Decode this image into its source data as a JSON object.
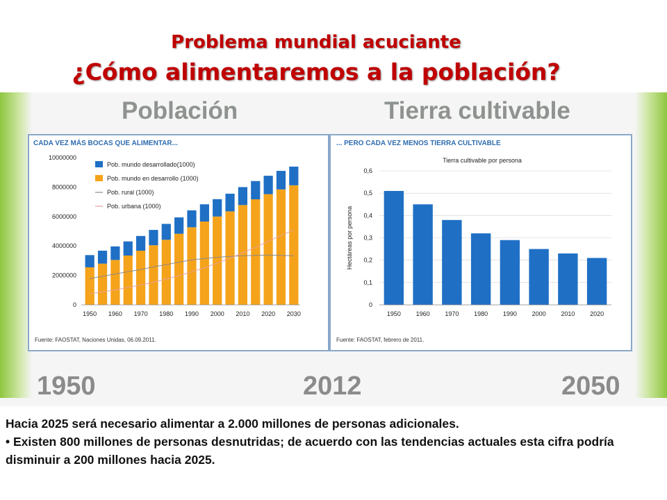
{
  "header": {
    "title": "Problema mundial acuciante",
    "subtitle": "¿Cómo alimentaremos a la población?"
  },
  "slide": {
    "heading_left": "Población",
    "heading_right": "Tierra cultivable",
    "timeline": [
      "1950",
      "2012",
      "2050"
    ]
  },
  "chart_data": [
    {
      "type": "bar",
      "panel_title": "CADA VEZ MÁS BOCAS QUE ALIMENTAR...",
      "source": "Fuente: FAOSTAT, Naciones Unidas, 06.09.2011.",
      "categories": [
        "1950",
        "1955",
        "1960",
        "1965",
        "1970",
        "1975",
        "1980",
        "1985",
        "1990",
        "1995",
        "2000",
        "2005",
        "2010",
        "2015",
        "2020",
        "2025",
        "2030"
      ],
      "x_tick_labels": [
        "1950",
        "1960",
        "1970",
        "1980",
        "1990",
        "2000",
        "2010",
        "2020",
        "2030"
      ],
      "stacked": true,
      "ylim": [
        0,
        10000000
      ],
      "y_ticks": [
        "0",
        "2000000",
        "4000000",
        "6000000",
        "8000000",
        "10000000"
      ],
      "series": [
        {
          "name": "Pob. mundo en desarrollo (1000)",
          "color": "#f5a31a",
          "values": [
            2550000,
            2800000,
            3050000,
            3350000,
            3680000,
            4050000,
            4420000,
            4830000,
            5270000,
            5660000,
            6000000,
            6350000,
            6780000,
            7170000,
            7520000,
            7840000,
            8120000
          ]
        },
        {
          "name": "Pob. mundo desarrollado(1000)",
          "color": "#1f6fc5",
          "values": [
            830000,
            880000,
            920000,
            960000,
            1000000,
            1040000,
            1080000,
            1110000,
            1150000,
            1170000,
            1180000,
            1200000,
            1220000,
            1240000,
            1250000,
            1260000,
            1270000
          ]
        },
        {
          "name": "Pob. rural (1000)",
          "color": "#8a8a8a",
          "kind": "line",
          "values": [
            1780000,
            1950000,
            2100000,
            2250000,
            2400000,
            2580000,
            2730000,
            2900000,
            3050000,
            3150000,
            3230000,
            3290000,
            3340000,
            3360000,
            3380000,
            3360000,
            3330000
          ]
        },
        {
          "name": "Pob. urbana (1000)",
          "color": "#e8a0a0",
          "kind": "line",
          "values": [
            750000,
            880000,
            1020000,
            1180000,
            1350000,
            1540000,
            1750000,
            1980000,
            2250000,
            2520000,
            2840000,
            3170000,
            3540000,
            3920000,
            4310000,
            4710000,
            5100000
          ]
        }
      ]
    },
    {
      "type": "bar",
      "panel_title": "... PERO CADA VEZ MENOS TIERRA CULTIVABLE",
      "title": "Tierra cultivable por persona",
      "ylabel": "Hectáreas por persona",
      "source": "Fuente: FAOSTAT, febrero de 2011.",
      "categories": [
        "1950",
        "1960",
        "1970",
        "1980",
        "1990",
        "2000",
        "2010",
        "2020"
      ],
      "values": [
        0.51,
        0.45,
        0.38,
        0.32,
        0.29,
        0.25,
        0.23,
        0.21
      ],
      "color": "#1f6fc5",
      "ylim": [
        0,
        0.6
      ],
      "y_ticks": [
        "0",
        "0,1",
        "0,2",
        "0,3",
        "0,4",
        "0,5",
        "0,6"
      ]
    }
  ],
  "text_block": {
    "line1": "Hacia 2025 será necesario alimentar a 2.000 millones de personas adicionales.",
    "line2": "• Existen 800 millones de personas desnutridas; de acuerdo con las tendencias actuales esta cifra podría disminuir a 200 millones hacia 2025."
  }
}
